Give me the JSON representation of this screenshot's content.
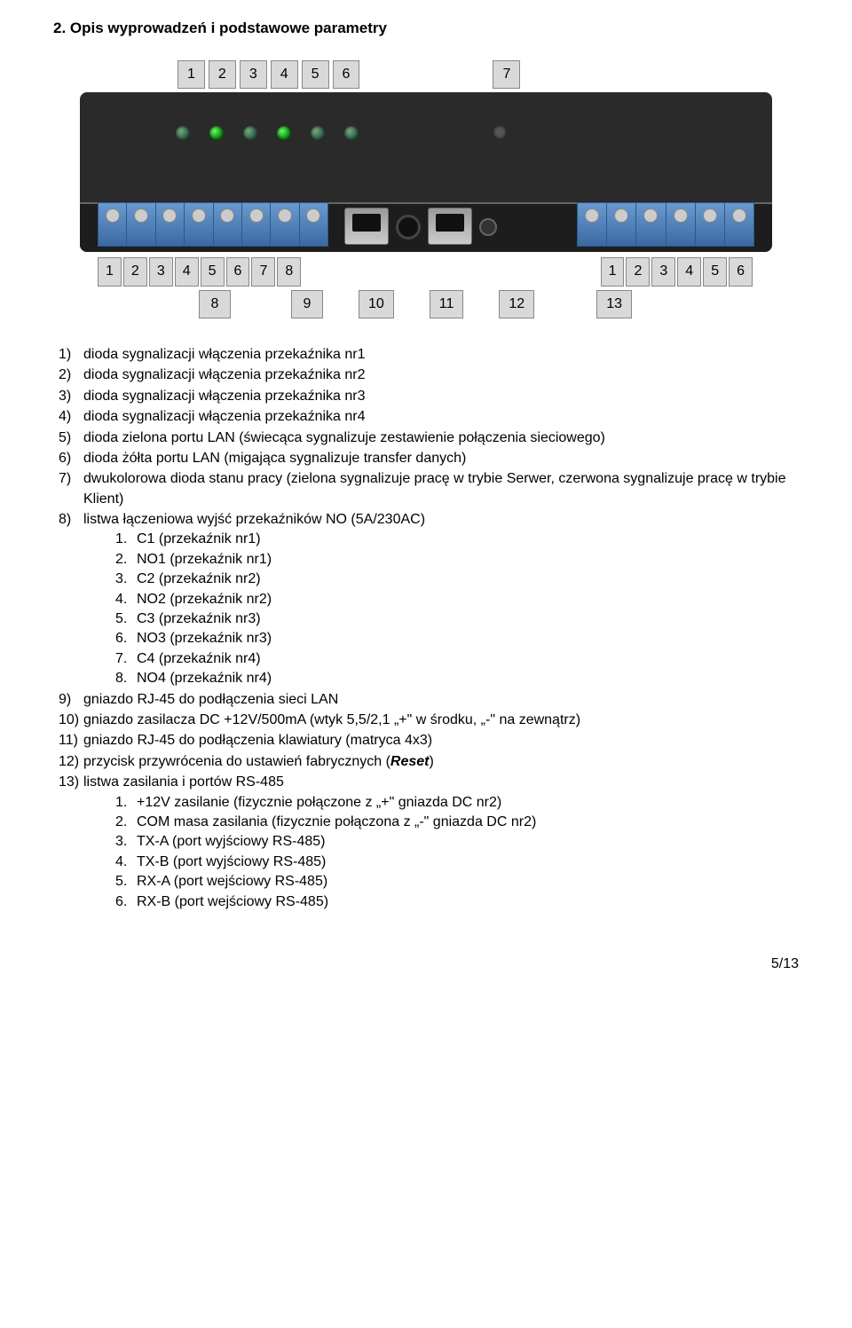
{
  "heading": "2. Opis wyprowadzeń i podstawowe parametry",
  "top_labels": [
    "1",
    "2",
    "3",
    "4",
    "5",
    "6",
    "7"
  ],
  "under_left": [
    "1",
    "2",
    "3",
    "4",
    "5",
    "6",
    "7",
    "8"
  ],
  "under_right": [
    "1",
    "2",
    "3",
    "4",
    "5",
    "6"
  ],
  "bottom_labels": {
    "b8": "8",
    "b9": "9",
    "b10": "10",
    "b11": "11",
    "b12": "12",
    "b13": "13"
  },
  "pin_left": [
    "C1",
    "NO1",
    "C2",
    "NO2",
    "C3",
    "NO3",
    "C4",
    "NO4"
  ],
  "pin_right": [
    "+12V",
    "COM",
    "TX-A",
    "TX-B",
    "RX-A",
    "RX-B"
  ],
  "list": {
    "i1": "dioda sygnalizacji włączenia przekaźnika nr1",
    "i2": "dioda sygnalizacji włączenia przekaźnika nr2",
    "i3": "dioda sygnalizacji włączenia przekaźnika nr3",
    "i4": "dioda sygnalizacji włączenia przekaźnika nr4",
    "i5": "dioda zielona portu LAN (świecąca sygnalizuje zestawienie połączenia sieciowego)",
    "i6": "dioda żółta portu LAN (migająca sygnalizuje transfer danych)",
    "i7": "dwukolorowa dioda stanu pracy (zielona sygnalizuje pracę w trybie Serwer, czerwona sygnalizuje pracę w trybie Klient)",
    "i8": "listwa łączeniowa wyjść przekaźników NO (5A/230AC)",
    "i8_sub": {
      "s1": "C1 (przekaźnik nr1)",
      "s2": "NO1 (przekaźnik nr1)",
      "s3": "C2 (przekaźnik nr2)",
      "s4": "NO2 (przekaźnik nr2)",
      "s5": "C3 (przekaźnik nr3)",
      "s6": "NO3 (przekaźnik nr3)",
      "s7": "C4 (przekaźnik nr4)",
      "s8": "NO4 (przekaźnik nr4)"
    },
    "i9": "gniazdo RJ-45 do podłączenia sieci LAN",
    "i10": "gniazdo zasilacza DC +12V/500mA (wtyk 5,5/2,1 „+\" w środku, „-\" na zewnątrz)",
    "i11": "gniazdo RJ-45 do podłączenia klawiatury (matryca 4x3)",
    "i12_pre": "przycisk przywrócenia do ustawień fabrycznych (",
    "i12_reset": "Reset",
    "i12_post": ")",
    "i13": "listwa zasilania i portów RS-485",
    "i13_sub": {
      "s1": "+12V zasilanie (fizycznie połączone z „+\" gniazda DC nr2)",
      "s2": "COM masa zasilania (fizycznie połączona z „-\" gniazda DC nr2)",
      "s3": "TX-A (port wyjściowy RS-485)",
      "s4": "TX-B (port wyjściowy RS-485)",
      "s5": "RX-A (port wejściowy RS-485)",
      "s6": "RX-B (port wejściowy RS-485)"
    }
  },
  "footer": "5/13"
}
